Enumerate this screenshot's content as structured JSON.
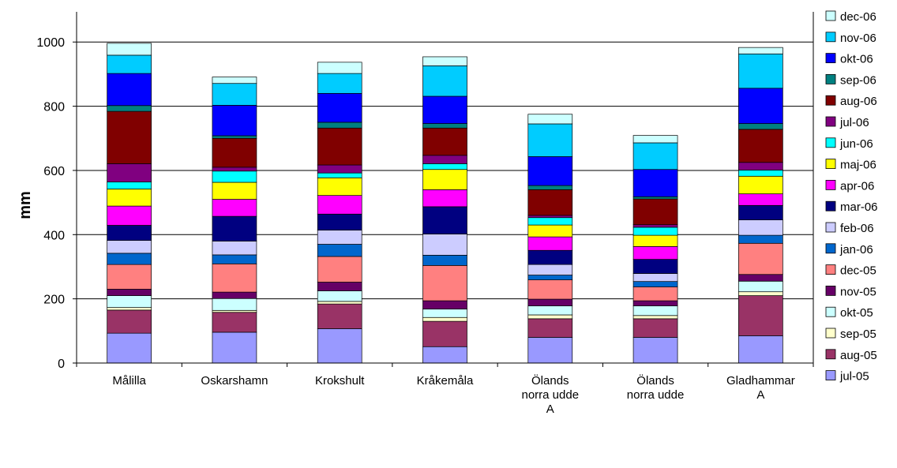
{
  "chart_data": {
    "type": "bar",
    "stacked": true,
    "ylabel": "mm",
    "ylim": [
      0,
      1000
    ],
    "yticks": [
      0,
      200,
      400,
      600,
      800,
      1000
    ],
    "grid": true,
    "legend_position": "right",
    "categories": [
      "Målilla",
      "Oskarshamn",
      "Krokshult",
      "Kråkemåla",
      "Ölands norra udde A",
      "Ölands norra udde",
      "Gladhammar A"
    ],
    "series": [
      {
        "name": "jul-05",
        "color": "#9999FF",
        "values": [
          93,
          96,
          107,
          51,
          80,
          80,
          85
        ]
      },
      {
        "name": "aug-05",
        "color": "#993366",
        "values": [
          72,
          62,
          77,
          79,
          58,
          58,
          125
        ]
      },
      {
        "name": "sep-05",
        "color": "#FFFFCC",
        "values": [
          8,
          6,
          8,
          12,
          12,
          10,
          12
        ]
      },
      {
        "name": "okt-05",
        "color": "#CCFFFF",
        "values": [
          37,
          37,
          33,
          26,
          28,
          30,
          33
        ]
      },
      {
        "name": "nov-05",
        "color": "#660066",
        "values": [
          20,
          20,
          27,
          26,
          21,
          16,
          21
        ]
      },
      {
        "name": "dec-05",
        "color": "#FF8080",
        "values": [
          77,
          88,
          80,
          110,
          60,
          43,
          97
        ]
      },
      {
        "name": "jan-06",
        "color": "#0066CC",
        "values": [
          35,
          28,
          38,
          32,
          15,
          17,
          25
        ]
      },
      {
        "name": "feb-06",
        "color": "#CCCCFF",
        "values": [
          40,
          43,
          44,
          66,
          33,
          25,
          48
        ]
      },
      {
        "name": "mar-06",
        "color": "#000080",
        "values": [
          47,
          77,
          50,
          85,
          44,
          44,
          45
        ]
      },
      {
        "name": "apr-06",
        "color": "#FF00FF",
        "values": [
          60,
          53,
          58,
          53,
          42,
          40,
          36
        ]
      },
      {
        "name": "maj-06",
        "color": "#FFFF00",
        "values": [
          53,
          53,
          55,
          63,
          37,
          35,
          55
        ]
      },
      {
        "name": "jun-06",
        "color": "#00FFFF",
        "values": [
          22,
          35,
          15,
          18,
          23,
          25,
          19
        ]
      },
      {
        "name": "jul-06",
        "color": "#800080",
        "values": [
          57,
          12,
          25,
          26,
          7,
          8,
          24
        ]
      },
      {
        "name": "aug-06",
        "color": "#800000",
        "values": [
          163,
          90,
          115,
          85,
          80,
          80,
          103
        ]
      },
      {
        "name": "sep-06",
        "color": "#008080",
        "values": [
          18,
          8,
          18,
          14,
          13,
          7,
          18
        ]
      },
      {
        "name": "okt-06",
        "color": "#0000FF",
        "values": [
          100,
          95,
          90,
          85,
          90,
          85,
          110
        ]
      },
      {
        "name": "nov-06",
        "color": "#00CCFF",
        "values": [
          57,
          68,
          62,
          95,
          102,
          83,
          107
        ]
      },
      {
        "name": "dec-06",
        "color": "#CCFFFF",
        "values": [
          37,
          20,
          35,
          28,
          30,
          23,
          20
        ]
      }
    ]
  }
}
